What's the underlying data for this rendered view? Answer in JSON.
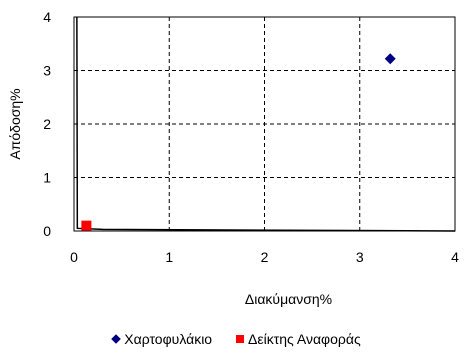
{
  "chart_data": {
    "type": "scatter",
    "xlabel": "Διακύμανση%",
    "ylabel": "Απόδοση%",
    "xlim": [
      0,
      4
    ],
    "ylim": [
      0,
      4
    ],
    "xticks": [
      0,
      1,
      2,
      3,
      4
    ],
    "yticks": [
      0,
      1,
      2,
      3,
      4
    ],
    "grid": true,
    "legend_position": "bottom",
    "series": [
      {
        "name": "Χαρτοφυλάκιο",
        "color": "#000080",
        "marker": "diamond",
        "points": [
          {
            "x": 3.32,
            "y": 3.22
          }
        ]
      },
      {
        "name": "Δείκτης Αναφοράς",
        "color": "#ff0000",
        "marker": "square",
        "points": [
          {
            "x": 0.13,
            "y": 0.1
          }
        ]
      }
    ],
    "curve": {
      "color": "#000000",
      "points": [
        {
          "x": 0.03,
          "y": 4.0
        },
        {
          "x": 0.035,
          "y": 0.05
        },
        {
          "x": 0.3,
          "y": 0.03
        },
        {
          "x": 4.0,
          "y": 0.0
        }
      ]
    }
  }
}
